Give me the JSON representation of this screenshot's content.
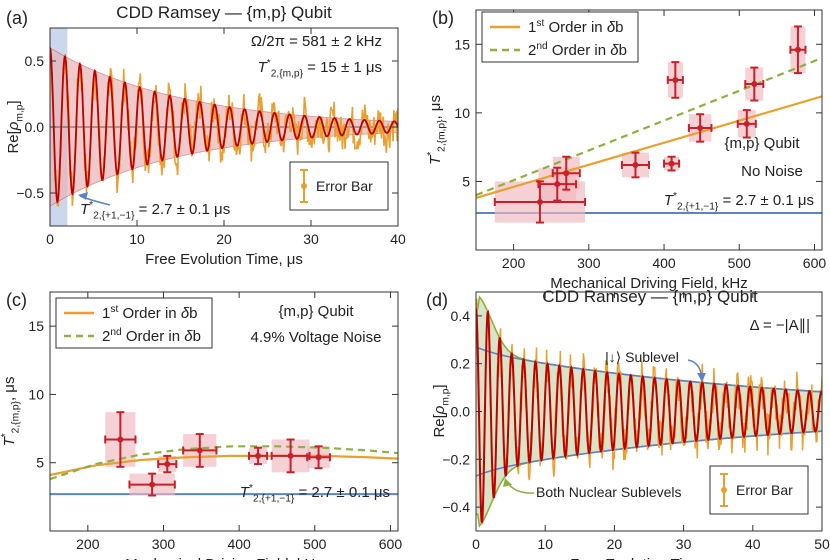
{
  "chart_data": [
    {
      "panel": "(a)",
      "type": "line",
      "title": "CDD Ramsey — {m,p} Qubit",
      "xlabel": "Free Evolution Time, μs",
      "ylabel": "Re[ρm,p]",
      "xlim": [
        0,
        40
      ],
      "ylim": [
        -0.75,
        0.75
      ],
      "xticks": [
        0,
        10,
        20,
        30,
        40
      ],
      "yticks": [
        -0.5,
        0.0,
        0.5
      ],
      "ytick_labels": [
        "−0.5",
        "0.0",
        "0.5"
      ],
      "annotations": {
        "freq": "Ω/2π = 581 ± 2 kHz",
        "t2_name": "T",
        "t2_sup": "*",
        "t2_sub": "2,{m,p}",
        "t2_val": " = 15 ± 1 μs",
        "t2ref_name": "T",
        "t2ref_sup": "*",
        "t2ref_sub": "2,{+1,−1}",
        "t2ref_val": " = 2.7 ± 0.1 μs"
      },
      "legend": [
        "Error Bar"
      ],
      "fit": {
        "amplitude": 0.6,
        "decay_us": 15,
        "freq_mhz": 0.581
      },
      "shaded_window_us": [
        0,
        2
      ],
      "colors": {
        "data": "#E8A030",
        "fit": "#C00000",
        "envelope": "#E8B4B8",
        "highlight": "#A8BEDF",
        "ref": "#5B84C4"
      }
    },
    {
      "panel": "(b)",
      "type": "scatter",
      "xlabel": "Mechanical Driving Field, kHz",
      "ylabel": "T*2,{m,p}, μs",
      "xlim": [
        150,
        610
      ],
      "ylim": [
        0,
        17.5
      ],
      "xticks": [
        200,
        300,
        400,
        500,
        600
      ],
      "yticks": [
        5,
        10,
        15
      ],
      "series": [
        {
          "name": "1st Order in δb",
          "x": [
            150,
            610
          ],
          "y": [
            3.8,
            11.2
          ]
        },
        {
          "name": "2nd Order in δb",
          "x": [
            150,
            610
          ],
          "y": [
            4.0,
            14.0
          ]
        }
      ],
      "legend_labels": [
        {
          "pre": "1",
          "sup": "st",
          "post": " Order in ",
          "ital": "δ",
          "end": "b"
        },
        {
          "pre": "2",
          "sup": "nd",
          "post": " Order in ",
          "ital": "δ",
          "end": "b"
        }
      ],
      "reference_line": {
        "y": 2.7
      },
      "points": [
        {
          "x": 235,
          "y": 3.5,
          "xerr": 60,
          "yerr": 1.5
        },
        {
          "x": 258,
          "y": 4.8,
          "xerr": 25,
          "yerr": 1.2
        },
        {
          "x": 270,
          "y": 5.6,
          "xerr": 18,
          "yerr": 1.2
        },
        {
          "x": 362,
          "y": 6.2,
          "xerr": 18,
          "yerr": 0.9
        },
        {
          "x": 410,
          "y": 6.3,
          "xerr": 10,
          "yerr": 0.5
        },
        {
          "x": 415,
          "y": 12.4,
          "xerr": 10,
          "yerr": 1.3
        },
        {
          "x": 448,
          "y": 8.9,
          "xerr": 15,
          "yerr": 1.0
        },
        {
          "x": 510,
          "y": 9.2,
          "xerr": 12,
          "yerr": 1.0
        },
        {
          "x": 520,
          "y": 12.1,
          "xerr": 12,
          "yerr": 1.2
        },
        {
          "x": 578,
          "y": 14.6,
          "xerr": 10,
          "yerr": 1.7
        }
      ],
      "text": {
        "qubit": "{m,p} Qubit",
        "noise": "No Noise",
        "ref_name": "T",
        "ref_sup": "*",
        "ref_sub": "2,{+1,−1}",
        "ref_val": " = 2.7 ± 0.1 μs"
      },
      "colors": {
        "first": "#E8A030",
        "second": "#8DB040",
        "points": "#C8202A",
        "box": "#EFB8BE",
        "ref": "#5B84C4"
      }
    },
    {
      "panel": "(c)",
      "type": "scatter",
      "xlabel": "Mechanical Driving Field, kHz",
      "ylabel": "T*2,{m,p}, μs",
      "xlim": [
        150,
        610
      ],
      "ylim": [
        0,
        17.5
      ],
      "xticks": [
        200,
        300,
        400,
        500,
        600
      ],
      "yticks": [
        5,
        10,
        15
      ],
      "series": [
        {
          "name": "1st Order in δb",
          "x": [
            150,
            210,
            270,
            330,
            390,
            450,
            510,
            570,
            610
          ],
          "y": [
            4.1,
            4.8,
            5.2,
            5.4,
            5.5,
            5.5,
            5.5,
            5.4,
            5.3
          ]
        },
        {
          "name": "2nd Order in δb",
          "x": [
            150,
            210,
            270,
            330,
            390,
            450,
            510,
            570,
            610
          ],
          "y": [
            3.8,
            4.9,
            5.6,
            6.0,
            6.2,
            6.2,
            6.1,
            5.9,
            5.7
          ]
        }
      ],
      "legend_labels": [
        {
          "pre": "1",
          "sup": "st",
          "post": " Order in ",
          "ital": "δ",
          "end": "b"
        },
        {
          "pre": "2",
          "sup": "nd",
          "post": " Order in ",
          "ital": "δ",
          "end": "b"
        }
      ],
      "reference_line": {
        "y": 2.7
      },
      "points": [
        {
          "x": 243,
          "y": 6.7,
          "xerr": 20,
          "yerr": 2.0
        },
        {
          "x": 285,
          "y": 3.4,
          "xerr": 30,
          "yerr": 0.8
        },
        {
          "x": 305,
          "y": 4.9,
          "xerr": 12,
          "yerr": 0.6
        },
        {
          "x": 348,
          "y": 5.9,
          "xerr": 22,
          "yerr": 1.2
        },
        {
          "x": 425,
          "y": 5.5,
          "xerr": 12,
          "yerr": 0.6
        },
        {
          "x": 468,
          "y": 5.5,
          "xerr": 25,
          "yerr": 1.2
        },
        {
          "x": 505,
          "y": 5.4,
          "xerr": 15,
          "yerr": 0.8
        }
      ],
      "text": {
        "qubit": "{m,p} Qubit",
        "noise": "4.9% Voltage Noise",
        "ref_name": "T",
        "ref_sup": "*",
        "ref_sub": "2,{+1,−1}",
        "ref_val": " = 2.7 ± 0.1 μs"
      },
      "colors": {
        "first": "#E8A030",
        "second": "#8DB040",
        "points": "#C8202A",
        "box": "#EFB8BE",
        "ref": "#5B84C4"
      }
    },
    {
      "panel": "(d)",
      "type": "line",
      "title": "CDD Ramsey — {m,p} Qubit",
      "xlabel": "Free Evolution Time, μs",
      "ylabel": "Re[ρm,p]",
      "xlim": [
        0,
        50
      ],
      "ylim": [
        -0.5,
        0.5
      ],
      "xticks": [
        0,
        10,
        20,
        30,
        40,
        50
      ],
      "yticks": [
        -0.4,
        -0.2,
        0.0,
        0.2,
        0.4
      ],
      "ytick_labels": [
        "−0.4",
        "−0.2",
        "0.0",
        "0.2",
        "0.4"
      ],
      "annotations": {
        "delta": "Δ = −|A∥|",
        "sublevel": "|↓⟩ Sublevel",
        "both": "Both Nuclear Sublevels"
      },
      "legend": [
        "Error Bar"
      ],
      "fit": {
        "amplitude": 0.25,
        "decay_us": 45,
        "freq_mhz": 0.581
      },
      "colors": {
        "data": "#E8A030",
        "fit": "#C00000",
        "blue_env": "#5B84C4",
        "green_env": "#8DB040",
        "fill": "#C8D8B0"
      }
    }
  ]
}
